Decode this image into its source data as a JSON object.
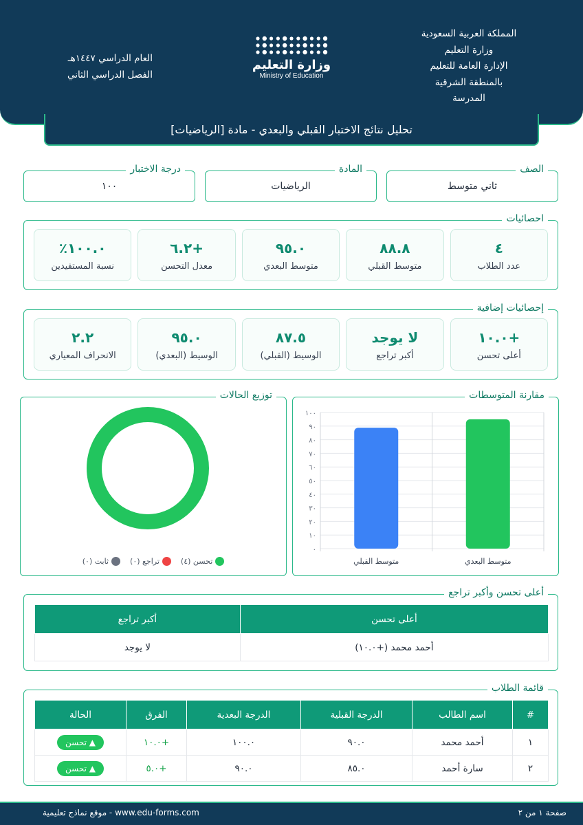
{
  "header": {
    "right_lines": [
      "المملكة العربية السعودية",
      "وزارة التعليم",
      "الإدارة العامة للتعليم",
      "بالمنطقة الشرقية",
      "المدرسة"
    ],
    "left_lines": [
      "العام الدراسي ١٤٤٧هـ",
      "الفصل الدراسي الثاني"
    ],
    "logo_ar": "وزارة التعليم",
    "logo_en": "Ministry of Education"
  },
  "title": "تحليل نتائج الاختبار القبلي والبعدي - مادة [الرياضيات]",
  "info": {
    "grade_label": "الصف",
    "grade_value": "ثاني متوسط",
    "subject_label": "المادة",
    "subject_value": "الرياضيات",
    "score_label": "درجة الاختبار",
    "score_value": "١٠٠"
  },
  "stats": {
    "legend": "احصائيات",
    "cards": [
      {
        "value": "٤",
        "label": "عدد الطلاب"
      },
      {
        "value": "٨٨.٨",
        "label": "متوسط القبلي"
      },
      {
        "value": "٩٥.٠",
        "label": "متوسط البعدي"
      },
      {
        "value": "+٦.٢",
        "label": "معدل التحسن"
      },
      {
        "value": "١٠٠.٠٪",
        "label": "نسبة المستفيدين"
      }
    ]
  },
  "extra_stats": {
    "legend": "إحصائيات إضافية",
    "cards": [
      {
        "value": "+١٠.٠",
        "label": "أعلى تحسن"
      },
      {
        "value": "لا يوجد",
        "label": "أكبر تراجع"
      },
      {
        "value": "٨٧.٥",
        "label": "الوسيط (القبلي)"
      },
      {
        "value": "٩٥.٠",
        "label": "الوسيط (البعدي)"
      },
      {
        "value": "٢.٢",
        "label": "الانحراف المعياري"
      }
    ]
  },
  "bar_panel": {
    "legend": "مقارنة المتوسطات"
  },
  "donut_panel": {
    "legend": "توزيع الحالات",
    "items": [
      {
        "label": "تحسن (٤)",
        "color": "#22c55e",
        "value": 4
      },
      {
        "label": "تراجع (٠)",
        "color": "#ef4444",
        "value": 0
      },
      {
        "label": "ثابت (٠)",
        "color": "#6b7280",
        "value": 0
      }
    ]
  },
  "chart_data": [
    {
      "type": "bar",
      "categories": [
        "متوسط البعدي",
        "متوسط القبلي"
      ],
      "values": [
        95.0,
        88.8
      ],
      "colors": [
        "#22c55e",
        "#3b82f6"
      ],
      "ylim": [
        0,
        100
      ],
      "yticks": [
        "٠",
        "١٠",
        "٢٠",
        "٣٠",
        "٤٠",
        "٥٠",
        "٦٠",
        "٧٠",
        "٨٠",
        "٩٠",
        "١٠٠"
      ],
      "grid": true
    },
    {
      "type": "pie",
      "categories": [
        "تحسن",
        "تراجع",
        "ثابت"
      ],
      "values": [
        4,
        0,
        0
      ],
      "colors": [
        "#22c55e",
        "#ef4444",
        "#6b7280"
      ]
    }
  ],
  "top_change": {
    "legend": "أعلى تحسن وأكبر تراجع",
    "headers": [
      "أعلى تحسن",
      "أكبر تراجع"
    ],
    "values": [
      "أحمد محمد (+١٠.٠)",
      "لا يوجد"
    ]
  },
  "students": {
    "legend": "قائمة الطلاب",
    "headers": [
      "#",
      "اسم الطالب",
      "الدرجة القبلية",
      "الدرجة البعدية",
      "الفرق",
      "الحالة"
    ],
    "rows": [
      {
        "num": "١",
        "name": "أحمد محمد",
        "pre": "٩٠.٠",
        "post": "١٠٠.٠",
        "diff": "+١٠.٠",
        "status": "▲ تحسن"
      },
      {
        "num": "٢",
        "name": "سارة أحمد",
        "pre": "٨٥.٠",
        "post": "٩٠.٠",
        "diff": "+٥.٠",
        "status": "▲ تحسن"
      }
    ]
  },
  "footer": {
    "page": "صفحة ١ من ٢",
    "site": "www.edu-forms.com - موقع نماذج تعليمية"
  }
}
